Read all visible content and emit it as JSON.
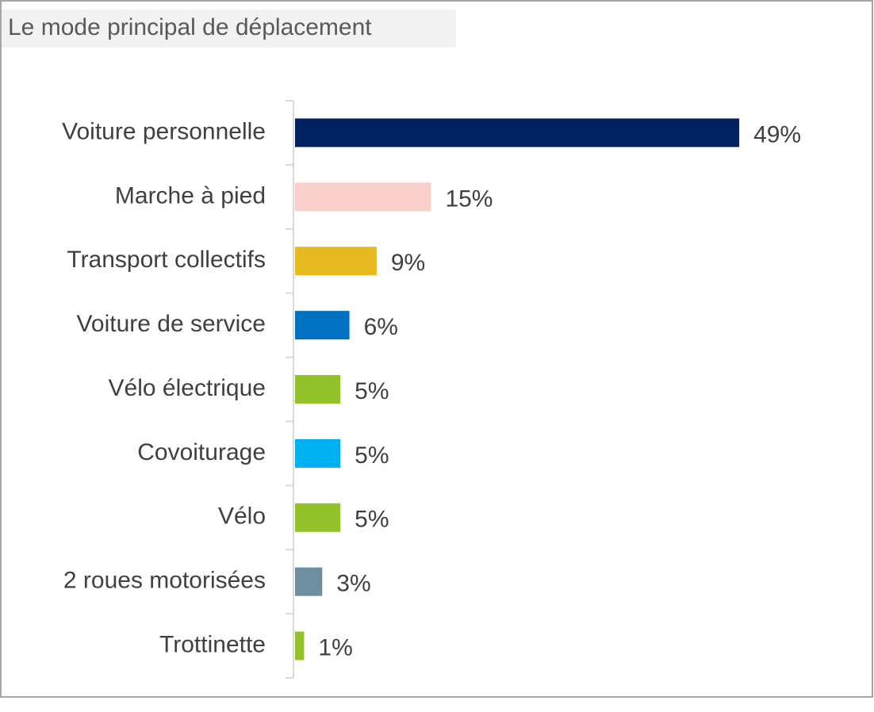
{
  "chart_data": {
    "type": "bar",
    "orientation": "horizontal",
    "title": "Le mode principal de déplacement",
    "categories": [
      "Voiture personnelle",
      "Marche à pied",
      "Transport collectifs",
      "Voiture de service",
      "Vélo électrique",
      "Covoiturage",
      "Vélo",
      "2 roues motorisées",
      "Trottinette"
    ],
    "values": [
      49,
      15,
      9,
      6,
      5,
      5,
      5,
      3,
      1
    ],
    "value_labels": [
      "49%",
      "15%",
      "9%",
      "6%",
      "5%",
      "5%",
      "5%",
      "3%",
      "1%"
    ],
    "colors": [
      "#002060",
      "#f8cfcb",
      "#e6b921",
      "#0070c0",
      "#92c12a",
      "#00b0f0",
      "#92c12a",
      "#6f8fa0",
      "#92c12a"
    ]
  }
}
